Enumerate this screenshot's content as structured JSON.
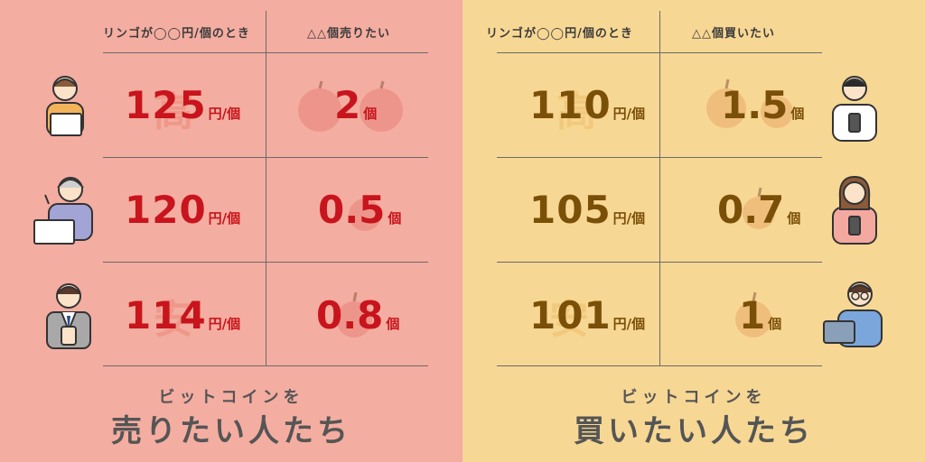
{
  "sell": {
    "header_when": "リンゴが◯◯円/個のとき",
    "header_qty": "△△個売りたい",
    "rows": [
      {
        "price": "125",
        "price_unit": "円/個",
        "qty": "2",
        "qty_unit": "個",
        "bg_kanji": "高"
      },
      {
        "price": "120",
        "price_unit": "円/個",
        "qty": "0.5",
        "qty_unit": "個",
        "bg_kanji": ""
      },
      {
        "price": "114",
        "price_unit": "円/個",
        "qty": "0.8",
        "qty_unit": "個",
        "bg_kanji": "安"
      }
    ],
    "caption_sub": "ビットコインを",
    "caption_main": "売りたい人たち",
    "background": "#f4ada1"
  },
  "buy": {
    "header_when": "リンゴが◯◯円/個のとき",
    "header_qty": "△△個買いたい",
    "rows": [
      {
        "price": "110",
        "price_unit": "円/個",
        "qty": "1.5",
        "qty_unit": "個",
        "bg_kanji": "高"
      },
      {
        "price": "105",
        "price_unit": "円/個",
        "qty": "0.7",
        "qty_unit": "個",
        "bg_kanji": ""
      },
      {
        "price": "101",
        "price_unit": "円/個",
        "qty": "1",
        "qty_unit": "個",
        "bg_kanji": "安"
      }
    ],
    "caption_sub": "ビットコインを",
    "caption_main": "買いたい人たち",
    "background": "#f7d794"
  },
  "icons": [
    "person-laptop-icon",
    "elderly-person-laptop-icon",
    "businessman-phone-icon",
    "person-phone-icon",
    "woman-phone-icon",
    "glasses-person-tablet-icon",
    "apple-icon"
  ]
}
